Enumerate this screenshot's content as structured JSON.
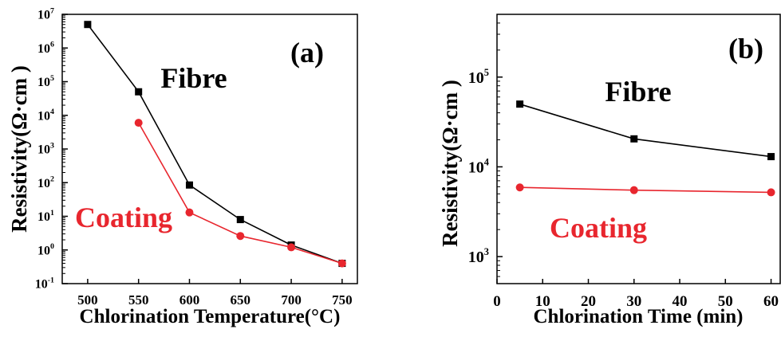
{
  "chart_data": [
    {
      "type": "line",
      "panel_label": "(a)",
      "xlabel": "Chlorination Temperature(°C)",
      "ylabel": "Resistivity(Ω·cm )",
      "xlim": [
        475,
        765
      ],
      "xticks": [
        500,
        550,
        600,
        650,
        700,
        750
      ],
      "yscale": "log",
      "ylim": [
        0.1,
        10000000
      ],
      "yticks": [
        {
          "exp": -1,
          "base": "10",
          "sup": "-1"
        },
        {
          "exp": 0,
          "base": "10",
          "sup": "0"
        },
        {
          "exp": 1,
          "base": "10",
          "sup": "1"
        },
        {
          "exp": 2,
          "base": "10",
          "sup": "2"
        },
        {
          "exp": 3,
          "base": "10",
          "sup": "3"
        },
        {
          "exp": 4,
          "base": "10",
          "sup": "4"
        },
        {
          "exp": 5,
          "base": "10",
          "sup": "5"
        },
        {
          "exp": 6,
          "base": "10",
          "sup": "6"
        },
        {
          "exp": 7,
          "base": "10",
          "sup": "7"
        }
      ],
      "series": [
        {
          "name": "Fibre",
          "color": "#000000",
          "marker": "square",
          "x": [
            500,
            550,
            600,
            650,
            700,
            750
          ],
          "y": [
            5000000,
            50000,
            85,
            8,
            1.4,
            0.4
          ]
        },
        {
          "name": "Coating",
          "color": "#e8262e",
          "marker": "circle",
          "x": [
            550,
            600,
            650,
            700,
            750
          ],
          "y": [
            6000,
            13,
            2.6,
            1.2,
            0.4
          ]
        }
      ],
      "annotations": [
        {
          "text": "Fibre",
          "color": "#000000"
        },
        {
          "text": "Coating",
          "color": "#e8262e"
        }
      ]
    },
    {
      "type": "line",
      "panel_label": "(b)",
      "xlabel": "Chlorination Time (min)",
      "ylabel": "Resistivity(Ω·cm )",
      "xlim": [
        0,
        62
      ],
      "xticks": [
        0,
        10,
        20,
        30,
        40,
        50,
        60
      ],
      "yscale": "log",
      "ylim": [
        500,
        500000
      ],
      "yticks": [
        {
          "exp": 3,
          "base": "10",
          "sup": "3"
        },
        {
          "exp": 4,
          "base": "10",
          "sup": "4"
        },
        {
          "exp": 5,
          "base": "10",
          "sup": "5"
        }
      ],
      "series": [
        {
          "name": "Fibre",
          "color": "#000000",
          "marker": "square",
          "x": [
            5,
            30,
            60
          ],
          "y": [
            50000,
            20500,
            13000
          ]
        },
        {
          "name": "Coating",
          "color": "#e8262e",
          "marker": "circle",
          "x": [
            5,
            30,
            60
          ],
          "y": [
            5900,
            5500,
            5200
          ]
        }
      ],
      "annotations": [
        {
          "text": "Fibre",
          "color": "#000000"
        },
        {
          "text": "Coating",
          "color": "#e8262e"
        }
      ]
    }
  ]
}
